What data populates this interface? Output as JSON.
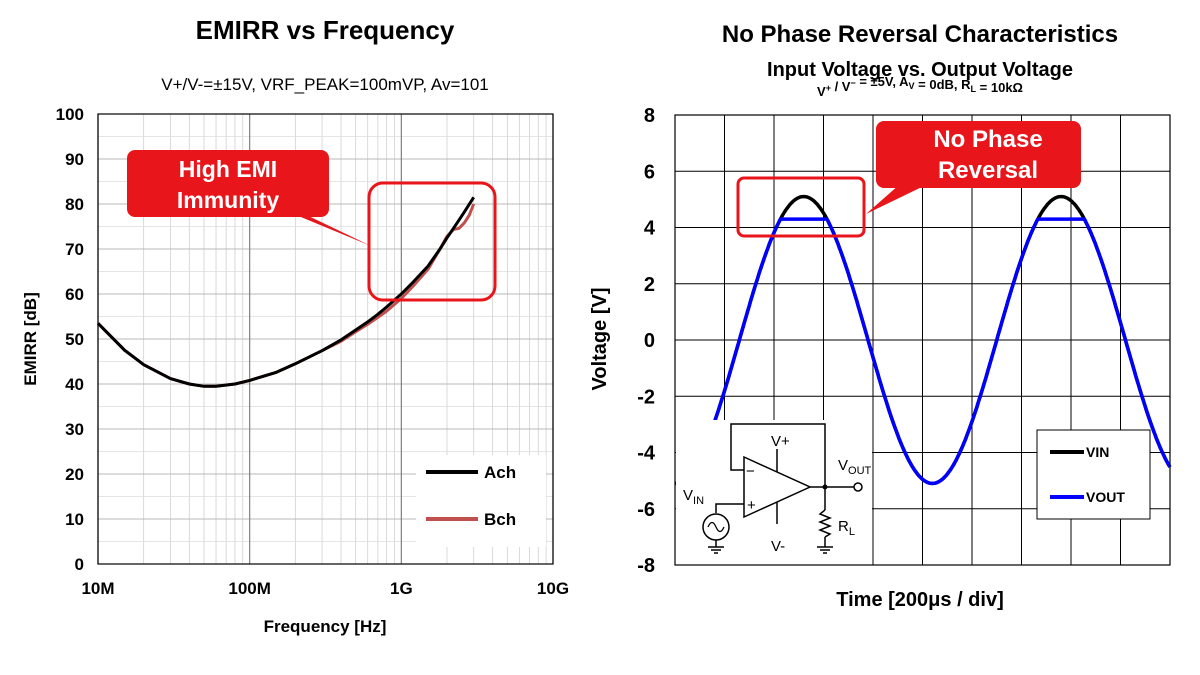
{
  "chart_data": [
    {
      "type": "line",
      "title": "EMIRR vs Frequency",
      "subtitle": "V+/V-=±15V, VRF_PEAK=100mVP, Av=101",
      "xlabel": "Frequency [Hz]",
      "ylabel": "EMIRR [dB]",
      "x_scale": "log",
      "xlim": [
        10000000,
        10000000000
      ],
      "ylim": [
        0,
        100
      ],
      "x_ticks": [
        10000000,
        100000000,
        1000000000,
        10000000000
      ],
      "x_tick_labels": [
        "10M",
        "100M",
        "1G",
        "10G"
      ],
      "y_ticks": [
        0,
        10,
        20,
        30,
        40,
        50,
        60,
        70,
        80,
        90,
        100
      ],
      "y_tick_labels": [
        "0",
        "10",
        "20",
        "30",
        "40",
        "50",
        "60",
        "70",
        "80",
        "90",
        "100"
      ],
      "grid": true,
      "legend": "bottom-right",
      "series": [
        {
          "name": "Ach",
          "color": "#000000",
          "points": [
            [
              10000000,
              53.5
            ],
            [
              15000000,
              47.5
            ],
            [
              20000000,
              44.3
            ],
            [
              30000000,
              41.2
            ],
            [
              40000000,
              40.0
            ],
            [
              50000000,
              39.5
            ],
            [
              60000000,
              39.5
            ],
            [
              80000000,
              40.0
            ],
            [
              100000000,
              40.8
            ],
            [
              150000000,
              42.6
            ],
            [
              200000000,
              44.5
            ],
            [
              300000000,
              47.4
            ],
            [
              400000000,
              49.8
            ],
            [
              500000000,
              52.0
            ],
            [
              600000000,
              53.8
            ],
            [
              700000000,
              55.5
            ],
            [
              800000000,
              57.1
            ],
            [
              1000000000,
              60.0
            ],
            [
              1200000000,
              62.7
            ],
            [
              1500000000,
              66.2
            ],
            [
              1800000000,
              70.0
            ],
            [
              2000000000,
              72.5
            ],
            [
              2300000000,
              75.5
            ],
            [
              2600000000,
              78.2
            ],
            [
              3000000000,
              81.5
            ]
          ]
        },
        {
          "name": "Bch",
          "color": "#c0504d",
          "points": [
            [
              10000000,
              53.5
            ],
            [
              15000000,
              47.5
            ],
            [
              20000000,
              44.3
            ],
            [
              30000000,
              41.2
            ],
            [
              40000000,
              40.0
            ],
            [
              50000000,
              39.5
            ],
            [
              60000000,
              39.5
            ],
            [
              80000000,
              40.0
            ],
            [
              100000000,
              40.8
            ],
            [
              150000000,
              42.6
            ],
            [
              200000000,
              44.5
            ],
            [
              300000000,
              47.4
            ],
            [
              400000000,
              49.5
            ],
            [
              500000000,
              51.6
            ],
            [
              600000000,
              53.3
            ],
            [
              700000000,
              54.8
            ],
            [
              800000000,
              56.2
            ],
            [
              1000000000,
              59.0
            ],
            [
              1200000000,
              61.8
            ],
            [
              1500000000,
              65.5
            ],
            [
              1800000000,
              70.0
            ],
            [
              2000000000,
              72.8
            ],
            [
              2200000000,
              74.3
            ],
            [
              2400000000,
              74.6
            ],
            [
              2600000000,
              75.8
            ],
            [
              2800000000,
              77.5
            ],
            [
              3000000000,
              80.0
            ]
          ]
        }
      ],
      "annotations": [
        {
          "text_lines": [
            "High EMI",
            "Immunity"
          ],
          "color": "#e8151b",
          "highlight_x": [
            1300000000,
            6000000000
          ],
          "highlight_y": [
            58,
            84
          ],
          "box_x": [
            20000000,
            300000000
          ],
          "box_y": [
            77,
            91
          ]
        }
      ]
    },
    {
      "type": "line",
      "title": "No Phase Reversal Characteristics",
      "subtitle": "Input Voltage vs. Output Voltage",
      "conditions": {
        "parts": [
          {
            "t": "V"
          },
          {
            "t": "+",
            "sup": true
          },
          {
            "t": " / V"
          },
          {
            "t": "−",
            "sup": true
          },
          {
            "t": " = ±5V, A"
          },
          {
            "t": "V",
            "sub": true
          },
          {
            "t": " = 0dB, R"
          },
          {
            "t": "L",
            "sub": true
          },
          {
            "t": " = 10kΩ"
          }
        ]
      },
      "xlabel": "Time [200μs / div]",
      "ylabel": "Voltage [V]",
      "xlim": [
        0,
        10
      ],
      "ylim": [
        -8,
        8
      ],
      "y_ticks": [
        -8,
        -6,
        -4,
        -2,
        0,
        2,
        4,
        6,
        8
      ],
      "y_tick_labels": [
        "-8",
        "-6",
        "-4",
        "-2",
        "0",
        "2",
        "4",
        "6",
        "8"
      ],
      "grid": true,
      "legend": "bottom-right",
      "waveform": {
        "amplitude": 5.1,
        "period_div": 5.2,
        "peak_div": 2.6
      },
      "series": [
        {
          "name": "VIN",
          "color": "#000000",
          "clip_high": null,
          "clip_low": null
        },
        {
          "name": "VOUT",
          "color": "#0000ff",
          "clip_high": 4.3,
          "clip_low": null
        }
      ],
      "annotations": [
        {
          "text_lines": [
            "No Phase",
            "Reversal"
          ],
          "color": "#e8151b"
        }
      ],
      "inset_schematic": {
        "labels": {
          "vplus": "V+",
          "vminus": "V-",
          "vout": "V",
          "vout_sub": "OUT",
          "vin": "V",
          "vin_sub": "IN",
          "rl": "R",
          "rl_sub": "L",
          "minus": "−",
          "plus": "+"
        }
      }
    }
  ]
}
